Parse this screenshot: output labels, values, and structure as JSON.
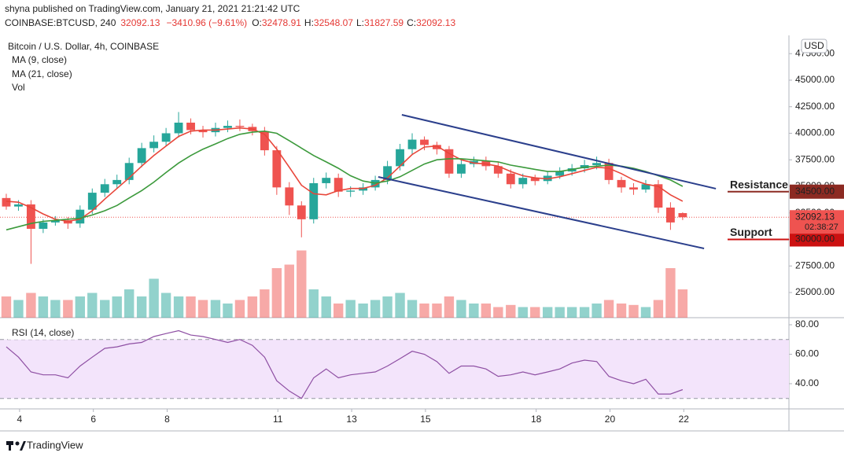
{
  "header": {
    "published": "shyna published on TradingView.com, January 21, 2021 21:21:42 UTC",
    "symbol": "COINBASE:BTCUSD, 240",
    "price": "32092.13",
    "change": "−3410.96 (−9.61%)",
    "ohlc": [
      {
        "label": "O:",
        "value": "32478.91"
      },
      {
        "label": "H:",
        "value": "32548.07"
      },
      {
        "label": "L:",
        "value": "31827.59"
      },
      {
        "label": "C:",
        "value": "32092.13"
      }
    ]
  },
  "footer": {
    "brand": "TradingView"
  },
  "chart_data": {
    "type": "candlestick",
    "title": "Bitcoin / U.S. Dollar, 4h, COINBASE",
    "currency": "USD",
    "up_color": "#26a69a",
    "down_color": "#ef5350",
    "x": [
      3.64,
      3.97,
      4.31,
      4.64,
      4.97,
      5.31,
      5.64,
      5.97,
      6.31,
      6.64,
      6.97,
      7.31,
      7.64,
      7.97,
      8.31,
      8.64,
      8.97,
      9.31,
      9.64,
      9.97,
      10.31,
      10.64,
      10.97,
      11.31,
      11.64,
      11.97,
      12.31,
      12.64,
      12.97,
      13.31,
      13.64,
      13.97,
      14.31,
      14.64,
      14.97,
      15.31,
      15.64,
      15.97,
      16.31,
      16.64,
      16.97,
      17.31,
      17.64,
      17.97,
      18.31,
      18.64,
      18.97,
      19.31,
      19.64,
      19.97,
      20.31,
      20.64,
      20.97,
      21.31,
      21.64,
      21.97
    ],
    "open": [
      33900,
      33100,
      33300,
      31000,
      31600,
      31800,
      31500,
      32800,
      34400,
      35200,
      35600,
      37200,
      38600,
      39200,
      40000,
      41000,
      40300,
      40100,
      40500,
      40700,
      40600,
      40200,
      38400,
      34900,
      33200,
      31900,
      35300,
      35800,
      34500,
      34600,
      34900,
      35600,
      36900,
      38500,
      39400,
      38900,
      38500,
      36200,
      37100,
      37400,
      36900,
      36200,
      35200,
      35800,
      35500,
      36000,
      36400,
      36700,
      37000,
      37200,
      35600,
      34900,
      34700,
      35200,
      33000,
      32478.91
    ],
    "high": [
      34300,
      33700,
      33700,
      31900,
      32200,
      32100,
      33200,
      34800,
      35700,
      36100,
      37700,
      39100,
      39800,
      40500,
      42000,
      41400,
      40700,
      41000,
      41200,
      41300,
      40900,
      40600,
      38800,
      35400,
      33600,
      35800,
      36300,
      36200,
      35000,
      35300,
      36000,
      37400,
      39000,
      40000,
      39700,
      39200,
      38800,
      37500,
      37800,
      37800,
      37300,
      36600,
      36200,
      36100,
      36400,
      36800,
      37100,
      37500,
      37800,
      37600,
      35900,
      35300,
      35600,
      35600,
      33500,
      32548.07
    ],
    "low": [
      32800,
      32700,
      27700,
      30600,
      31300,
      31000,
      31100,
      32400,
      34000,
      34800,
      35200,
      36800,
      38200,
      38800,
      39600,
      39900,
      39600,
      39700,
      40100,
      40200,
      39800,
      37900,
      34200,
      32300,
      30200,
      31500,
      34800,
      34000,
      34000,
      34200,
      34600,
      35200,
      36500,
      38000,
      38400,
      38000,
      35800,
      35800,
      36800,
      36500,
      35800,
      34800,
      34800,
      35100,
      35200,
      35700,
      36000,
      36300,
      36600,
      35200,
      34400,
      34200,
      34400,
      32500,
      30900,
      31827.59
    ],
    "close": [
      33100,
      33300,
      31000,
      31600,
      31800,
      31500,
      32800,
      34400,
      35200,
      35600,
      37200,
      38600,
      39200,
      40000,
      41000,
      40300,
      40100,
      40500,
      40700,
      40600,
      40200,
      38400,
      34900,
      33200,
      31900,
      35300,
      35800,
      34500,
      34600,
      34900,
      35600,
      36900,
      38500,
      39400,
      38900,
      38500,
      36200,
      37100,
      37400,
      36900,
      36200,
      35200,
      35800,
      35500,
      36000,
      36400,
      36700,
      37000,
      37200,
      35600,
      34900,
      34700,
      35200,
      33000,
      31600,
      32092.13
    ],
    "xlim": [
      3.47,
      24.85
    ],
    "xticks": [
      4,
      6,
      8,
      11,
      13,
      15,
      18,
      20,
      22
    ],
    "ylim": [
      22630,
      49220
    ],
    "yticks": [
      {
        "value": 25000,
        "label": "25000.00"
      },
      {
        "value": 27500,
        "label": "27500.00"
      },
      {
        "value": 30000,
        "label": "30000.00"
      },
      {
        "value": 32500,
        "label": "32500.00"
      },
      {
        "value": 35000,
        "label": "35000.00"
      },
      {
        "value": 37500,
        "label": "37500.00"
      },
      {
        "value": 40000,
        "label": "40000.00"
      },
      {
        "value": 42500,
        "label": "42500.00"
      },
      {
        "value": 45000,
        "label": "45000.00"
      },
      {
        "value": 47500,
        "label": "47500.00"
      }
    ],
    "series": [
      {
        "name": "MA (9, close)",
        "color": "#e8463a",
        "values": [
          33600,
          33500,
          33000,
          32400,
          31900,
          31700,
          31900,
          32700,
          33800,
          34800,
          35800,
          36900,
          37900,
          38800,
          39700,
          40200,
          40300,
          40300,
          40400,
          40500,
          40400,
          39900,
          38500,
          36800,
          35100,
          34300,
          34200,
          34600,
          34800,
          34800,
          35100,
          35800,
          36900,
          38000,
          38700,
          38800,
          38100,
          37500,
          37200,
          37100,
          36900,
          36400,
          36000,
          35800,
          35700,
          35900,
          36200,
          36500,
          36800,
          36700,
          36200,
          35600,
          35200,
          35000,
          34200,
          33600
        ]
      },
      {
        "name": "MA (21, close)",
        "color": "#3c9a3c",
        "values": [
          30900,
          31200,
          31500,
          31700,
          31800,
          31900,
          32000,
          32300,
          32700,
          33200,
          33900,
          34600,
          35400,
          36300,
          37200,
          37900,
          38500,
          39000,
          39500,
          39900,
          40100,
          40200,
          40000,
          39300,
          38600,
          37900,
          37300,
          36700,
          36000,
          35500,
          35300,
          35500,
          35900,
          36500,
          37100,
          37500,
          37600,
          37600,
          37500,
          37400,
          37300,
          37000,
          36800,
          36600,
          36400,
          36400,
          36600,
          36800,
          36900,
          37000,
          36900,
          36700,
          36400,
          36000,
          35600,
          35000
        ]
      }
    ],
    "volume": {
      "name": "Vol",
      "values": [
        30,
        25,
        35,
        30,
        25,
        25,
        30,
        35,
        25,
        30,
        40,
        30,
        55,
        35,
        30,
        30,
        25,
        25,
        20,
        25,
        30,
        40,
        70,
        75,
        95,
        40,
        30,
        20,
        25,
        20,
        25,
        30,
        35,
        25,
        20,
        20,
        30,
        25,
        20,
        20,
        15,
        18,
        15,
        15,
        15,
        15,
        15,
        15,
        20,
        25,
        20,
        18,
        15,
        25,
        70,
        40
      ]
    },
    "trendlines": [
      {
        "x": [
          14.36,
          22.87
        ],
        "y": [
          41740,
          34780
        ],
        "color": "#2b3f8c"
      },
      {
        "x": [
          13.72,
          22.55
        ],
        "y": [
          35890,
          29150
        ],
        "color": "#2b3f8c"
      }
    ],
    "levels": [
      {
        "name": "Resistance",
        "value": 34500,
        "label": "34500.00",
        "color": "#e0482e",
        "tag_color": "#8c2a22"
      },
      {
        "name": "Support",
        "value": 30000,
        "label": "30000.00",
        "color": "#1b5e20",
        "tag_color": "#cc1111"
      }
    ],
    "last_price": {
      "value": 32092.13,
      "label": "32092.13",
      "countdown": "02:38:27",
      "color": "#ef5350"
    },
    "rsi": {
      "name": "RSI (14, close)",
      "color": "#8e4fa3",
      "band": [
        30,
        70
      ],
      "values": [
        65,
        58,
        48,
        46,
        46,
        44,
        52,
        58,
        64,
        65,
        67,
        68,
        72,
        74,
        76,
        73,
        72,
        70,
        68,
        70,
        66,
        58,
        42,
        35,
        30,
        44,
        50,
        44,
        46,
        47,
        48,
        52,
        57,
        62,
        60,
        55,
        47,
        52,
        52,
        50,
        45,
        46,
        48,
        46,
        48,
        50,
        54,
        56,
        55,
        45,
        42,
        40,
        43,
        33,
        33,
        36
      ],
      "ylim": [
        22.9,
        84.8
      ],
      "yticks": [
        {
          "value": 40,
          "label": "40.00"
        },
        {
          "value": 60,
          "label": "60.00"
        },
        {
          "value": 80,
          "label": "80.00"
        }
      ]
    }
  }
}
